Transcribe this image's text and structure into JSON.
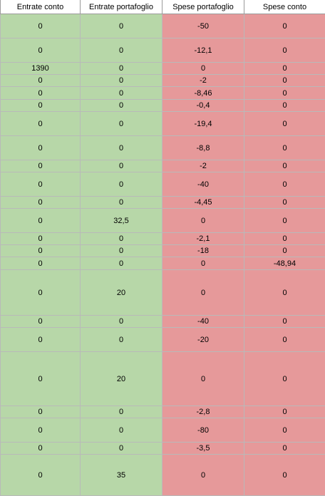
{
  "headers": [
    "Entrate conto",
    "Entrate portafoglio",
    "Spese portafoglio",
    "Spese conto"
  ],
  "colors": {
    "income": "#b7d7a8",
    "expense": "#e6999a"
  },
  "rows": [
    [
      "0",
      "0",
      "-50",
      "0"
    ],
    [
      "0",
      "0",
      "-12,1",
      "0"
    ],
    [
      "1390",
      "0",
      "0",
      "0"
    ],
    [
      "0",
      "0",
      "-2",
      "0"
    ],
    [
      "0",
      "0",
      "-8,46",
      "0"
    ],
    [
      "0",
      "0",
      "-0,4",
      "0"
    ],
    [
      "0",
      "0",
      "-19,4",
      "0"
    ],
    [
      "0",
      "0",
      "-8,8",
      "0"
    ],
    [
      "0",
      "0",
      "-2",
      "0"
    ],
    [
      "0",
      "0",
      "-40",
      "0"
    ],
    [
      "0",
      "0",
      "-4,45",
      "0"
    ],
    [
      "0",
      "32,5",
      "0",
      "0"
    ],
    [
      "0",
      "0",
      "-2,1",
      "0"
    ],
    [
      "0",
      "0",
      "-18",
      "0"
    ],
    [
      "0",
      "0",
      "0",
      "-48,94"
    ],
    [
      "0",
      "20",
      "0",
      "0"
    ],
    [
      "0",
      "0",
      "-40",
      "0"
    ],
    [
      "0",
      "0",
      "-20",
      "0"
    ],
    [
      "0",
      "20",
      "0",
      "0"
    ],
    [
      "0",
      "0",
      "-2,8",
      "0"
    ],
    [
      "0",
      "0",
      "-80",
      "0"
    ],
    [
      "0",
      "0",
      "-3,5",
      "0"
    ],
    [
      "0",
      "35",
      "0",
      "0"
    ]
  ]
}
